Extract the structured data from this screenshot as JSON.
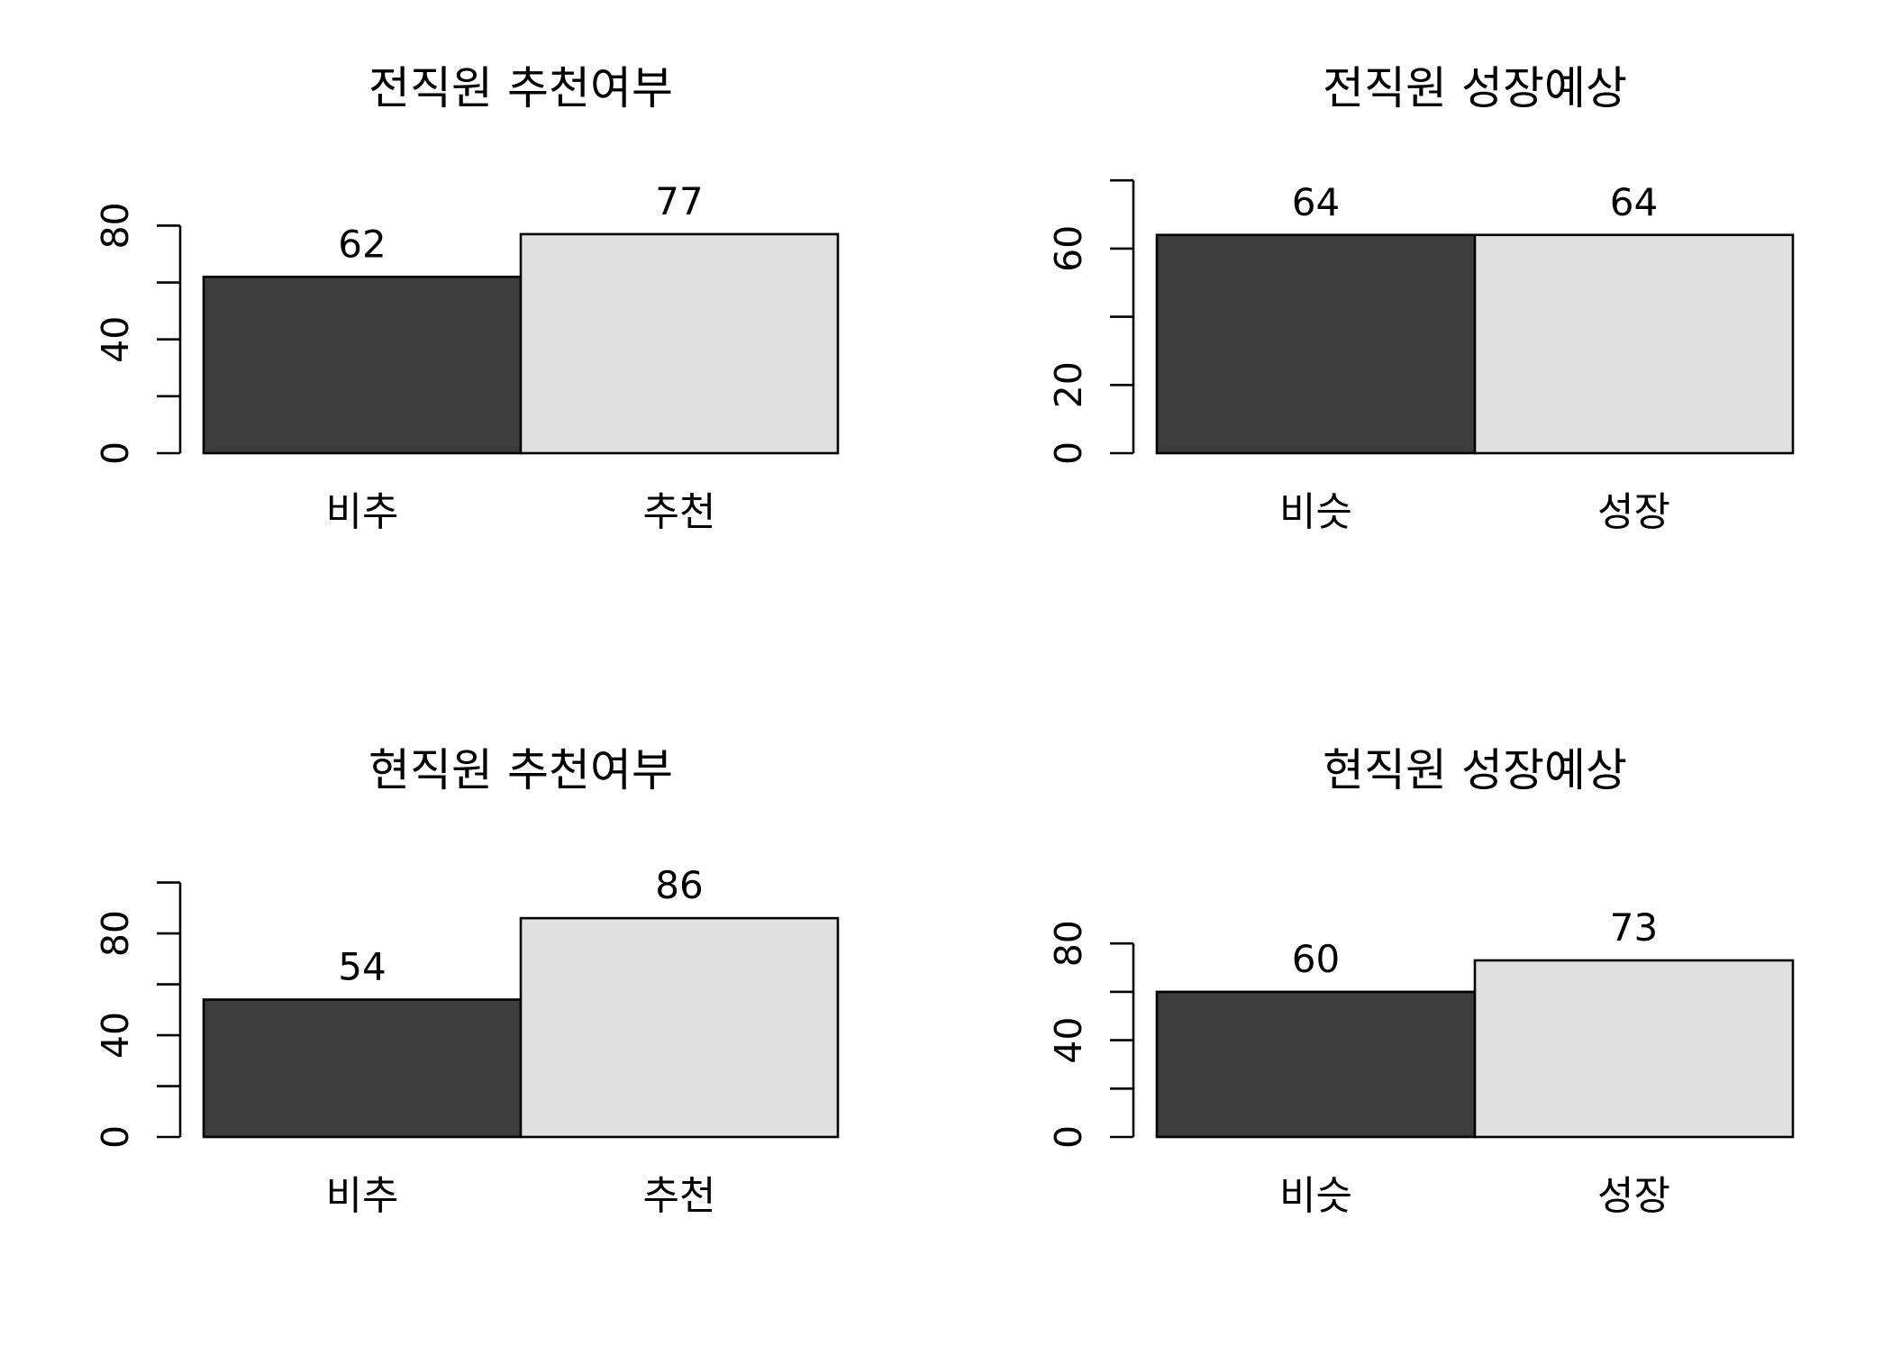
{
  "colors": {
    "bar_dark": "#3d3d3d",
    "bar_light": "#e0e0e0",
    "axis": "#000000",
    "background": "#ffffff"
  },
  "chart_data": [
    {
      "type": "bar",
      "title": "전직원 추천여부",
      "categories": [
        "비추",
        "추천"
      ],
      "values": [
        62,
        77
      ],
      "data_labels": [
        "62",
        "77"
      ],
      "ylim": [
        0,
        80
      ],
      "yticks": [
        0,
        20,
        40,
        60,
        80
      ],
      "ytick_labels": [
        "0",
        "",
        "40",
        "",
        "80"
      ],
      "grid": false
    },
    {
      "type": "bar",
      "title": "전직원 성장예상",
      "categories": [
        "비슷",
        "성장"
      ],
      "values": [
        64,
        64
      ],
      "data_labels": [
        "64",
        "64"
      ],
      "ylim": [
        0,
        80
      ],
      "yticks": [
        0,
        20,
        40,
        60,
        80
      ],
      "ytick_labels": [
        "0",
        "20",
        "",
        "60",
        ""
      ],
      "grid": false
    },
    {
      "type": "bar",
      "title": "현직원 추천여부",
      "categories": [
        "비추",
        "추천"
      ],
      "values": [
        54,
        86
      ],
      "data_labels": [
        "54",
        "86"
      ],
      "ylim": [
        0,
        100
      ],
      "yticks": [
        0,
        20,
        40,
        60,
        80,
        100
      ],
      "ytick_labels": [
        "0",
        "",
        "40",
        "",
        "80",
        ""
      ],
      "grid": false
    },
    {
      "type": "bar",
      "title": "현직원 성장예상",
      "categories": [
        "비슷",
        "성장"
      ],
      "values": [
        60,
        73
      ],
      "data_labels": [
        "60",
        "73"
      ],
      "ylim": [
        0,
        80
      ],
      "yticks": [
        0,
        20,
        40,
        60,
        80
      ],
      "ytick_labels": [
        "0",
        "",
        "40",
        "",
        "80"
      ],
      "grid": false
    }
  ]
}
